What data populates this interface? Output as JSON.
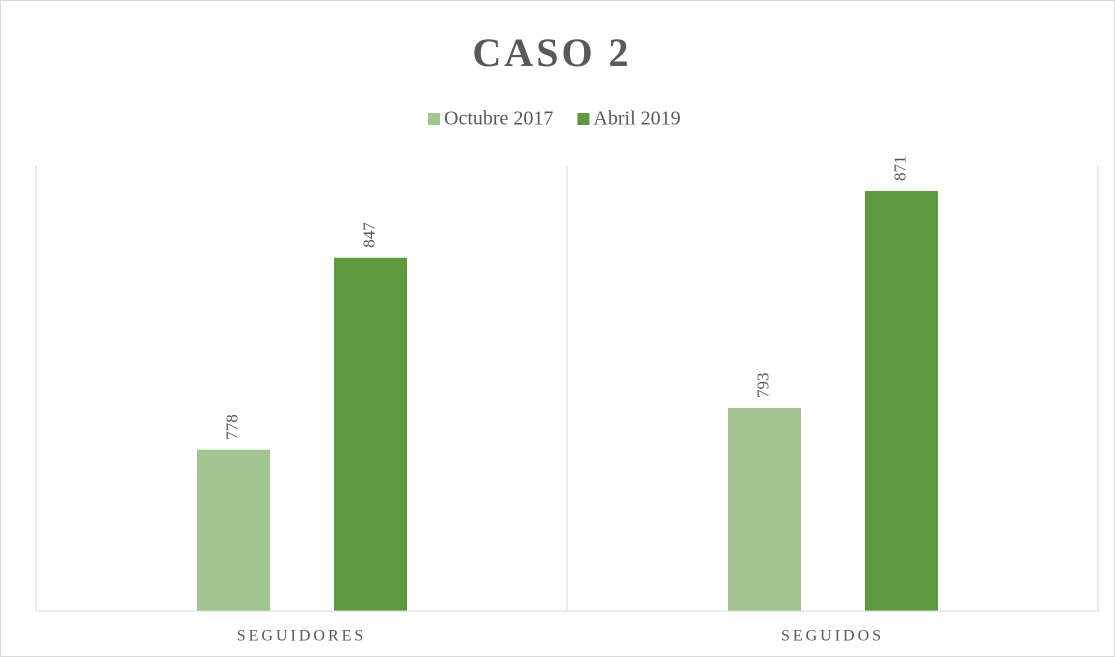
{
  "chart_data": {
    "type": "bar",
    "title": "CASO 2",
    "categories": [
      "SEGUIDORES",
      "SEGUIDOS"
    ],
    "series": [
      {
        "name": "Octubre 2017",
        "color": "#a2c490",
        "values": [
          778,
          793
        ]
      },
      {
        "name": "Abril 2019",
        "color": "#5e9940",
        "values": [
          847,
          871
        ]
      }
    ],
    "ylim": [
      720,
      880
    ]
  }
}
